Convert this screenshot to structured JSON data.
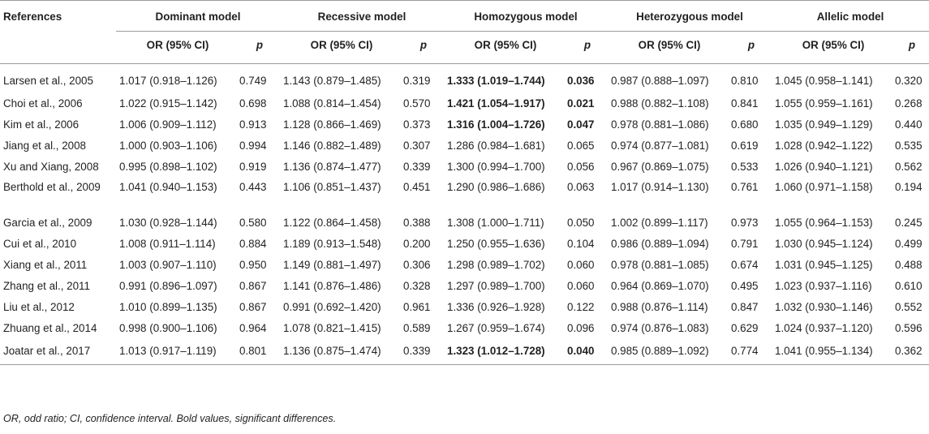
{
  "headers": {
    "references": "References",
    "models": [
      "Dominant model",
      "Recessive model",
      "Homozygous model",
      "Heterozygous model",
      "Allelic model"
    ],
    "or_label": "OR (95% CI)",
    "p_label": "p"
  },
  "rows": [
    {
      "ref": "Larsen et al., 2005",
      "vals": [
        [
          "1.017 (0.918–1.126)",
          "0.749"
        ],
        [
          "1.143 (0.879–1.485)",
          "0.319"
        ],
        [
          "1.333 (1.019–1.744)",
          "0.036"
        ],
        [
          "0.987 (0.888–1.097)",
          "0.810"
        ],
        [
          "1.045 (0.958–1.141)",
          "0.320"
        ]
      ],
      "bold": 2
    },
    {
      "ref": "Choi et al., 2006",
      "vals": [
        [
          "1.022 (0.915–1.142)",
          "0.698"
        ],
        [
          "1.088 (0.814–1.454)",
          "0.570"
        ],
        [
          "1.421 (1.054–1.917)",
          "0.021"
        ],
        [
          "0.988 (0.882–1.108)",
          "0.841"
        ],
        [
          "1.055 (0.959–1.161)",
          "0.268"
        ]
      ],
      "bold": 2
    },
    {
      "ref": "Kim et al., 2006",
      "vals": [
        [
          "1.006 (0.909–1.112)",
          "0.913"
        ],
        [
          "1.128 (0.866–1.469)",
          "0.373"
        ],
        [
          "1.316 (1.004–1.726)",
          "0.047"
        ],
        [
          "0.978 (0.881–1.086)",
          "0.680"
        ],
        [
          "1.035 (0.949–1.129)",
          "0.440"
        ]
      ],
      "bold": 2
    },
    {
      "ref": "Jiang et al., 2008",
      "vals": [
        [
          "1.000 (0.903–1.106)",
          "0.994"
        ],
        [
          "1.146 (0.882–1.489)",
          "0.307"
        ],
        [
          "1.286 (0.984–1.681)",
          "0.065"
        ],
        [
          "0.974 (0.877–1.081)",
          "0.619"
        ],
        [
          "1.028 (0.942–1.122)",
          "0.535"
        ]
      ]
    },
    {
      "ref": "Xu and Xiang, 2008",
      "vals": [
        [
          "0.995 (0.898–1.102)",
          "0.919"
        ],
        [
          "1.136 (0.874–1.477)",
          "0.339"
        ],
        [
          "1.300 (0.994–1.700)",
          "0.056"
        ],
        [
          "0.967 (0.869–1.075)",
          "0.533"
        ],
        [
          "1.026 (0.940–1.121)",
          "0.562"
        ]
      ]
    },
    {
      "ref": "Berthold et al., 2009",
      "vals": [
        [
          "1.041 (0.940–1.153)",
          "0.443"
        ],
        [
          "1.106 (0.851–1.437)",
          "0.451"
        ],
        [
          "1.290 (0.986–1.686)",
          "0.063"
        ],
        [
          "1.017 (0.914–1.130)",
          "0.761"
        ],
        [
          "1.060 (0.971–1.158)",
          "0.194"
        ]
      ]
    },
    {
      "ref": "Garcia et al., 2009",
      "vals": [
        [
          "1.030 (0.928–1.144)",
          "0.580"
        ],
        [
          "1.122 (0.864–1.458)",
          "0.388"
        ],
        [
          "1.308 (1.000–1.711)",
          "0.050"
        ],
        [
          "1.002 (0.899–1.117)",
          "0.973"
        ],
        [
          "1.055 (0.964–1.153)",
          "0.245"
        ]
      ]
    },
    {
      "ref": "Cui et al., 2010",
      "vals": [
        [
          "1.008 (0.911–1.114)",
          "0.884"
        ],
        [
          "1.189 (0.913–1.548)",
          "0.200"
        ],
        [
          "1.250 (0.955–1.636)",
          "0.104"
        ],
        [
          "0.986 (0.889–1.094)",
          "0.791"
        ],
        [
          "1.030 (0.945–1.124)",
          "0.499"
        ]
      ]
    },
    {
      "ref": "Xiang et al., 2011",
      "vals": [
        [
          "1.003 (0.907–1.110)",
          "0.950"
        ],
        [
          "1.149 (0.881–1.497)",
          "0.306"
        ],
        [
          "1.298 (0.989–1.702)",
          "0.060"
        ],
        [
          "0.978 (0.881–1.085)",
          "0.674"
        ],
        [
          "1.031 (0.945–1.125)",
          "0.488"
        ]
      ]
    },
    {
      "ref": "Zhang et al., 2011",
      "vals": [
        [
          "0.991 (0.896–1.097)",
          "0.867"
        ],
        [
          "1.141 (0.876–1.486)",
          "0.328"
        ],
        [
          "1.297 (0.989–1.700)",
          "0.060"
        ],
        [
          "0.964 (0.869–1.070)",
          "0.495"
        ],
        [
          "1.023 (0.937–1.116)",
          "0.610"
        ]
      ]
    },
    {
      "ref": "Liu et al., 2012",
      "vals": [
        [
          "1.010 (0.899–1.135)",
          "0.867"
        ],
        [
          "0.991 (0.692–1.420)",
          "0.961"
        ],
        [
          "1.336 (0.926–1.928)",
          "0.122"
        ],
        [
          "0.988 (0.876–1.114)",
          "0.847"
        ],
        [
          "1.032 (0.930–1.146)",
          "0.552"
        ]
      ]
    },
    {
      "ref": "Zhuang et al., 2014",
      "vals": [
        [
          "0.998 (0.900–1.106)",
          "0.964"
        ],
        [
          "1.078 (0.821–1.415)",
          "0.589"
        ],
        [
          "1.267 (0.959–1.674)",
          "0.096"
        ],
        [
          "0.974 (0.876–1.083)",
          "0.629"
        ],
        [
          "1.024 (0.937–1.120)",
          "0.596"
        ]
      ]
    },
    {
      "ref": "Joatar et al., 2017",
      "vals": [
        [
          "1.013 (0.917–1.119)",
          "0.801"
        ],
        [
          "1.136 (0.875–1.474)",
          "0.339"
        ],
        [
          "1.323 (1.012–1.728)",
          "0.040"
        ],
        [
          "0.985 (0.889–1.092)",
          "0.774"
        ],
        [
          "1.041 (0.955–1.134)",
          "0.362"
        ]
      ],
      "bold": 2
    }
  ],
  "footnote": "OR, odd ratio; CI, confidence interval. Bold values, significant differences."
}
